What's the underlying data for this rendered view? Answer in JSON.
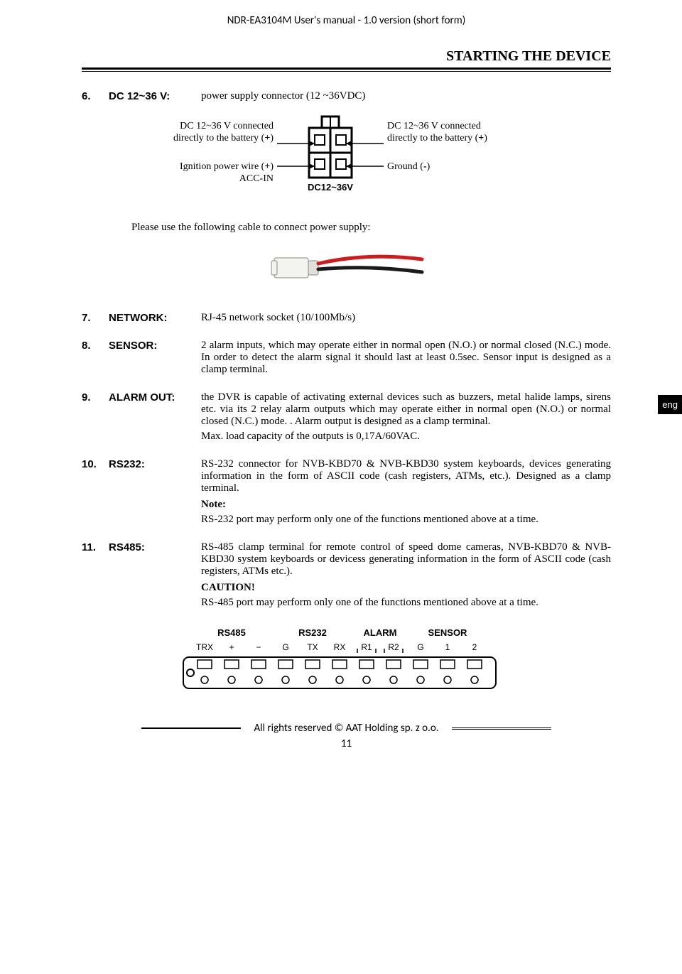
{
  "header": {
    "doc_title": "NDR-EA3104M User's manual - 1.0 version (short form)"
  },
  "section": {
    "title": "STARTING THE DEVICE"
  },
  "lang_tab": "eng",
  "connector": {
    "number": "6.",
    "label": "DC 12~36 V:",
    "desc": "power supply connector (12 ~36VDC)",
    "left_top_line1": "DC 12~36 V connected",
    "left_top_line2_pre": "directly to the battery (",
    "left_top_line2_sign": "+",
    "left_top_line2_post": ")",
    "left_bot_line1_pre": "Ignition power wire (",
    "left_bot_line1_sign": "+",
    "left_bot_line1_post": ")",
    "left_bot_line2": "ACC-IN",
    "right_top_line1": "DC 12~36 V connected",
    "right_top_line2_pre": "directly to the battery (",
    "right_top_line2_sign": "+",
    "right_top_line2_post": ")",
    "right_bot_pre": "Ground (",
    "right_bot_sign": "-",
    "right_bot_post": ")",
    "svg_label": "DC12~36V",
    "cable_msg": "Please use the following cable to connect power supply:"
  },
  "items": [
    {
      "number": "7.",
      "label": "NETWORK:",
      "body": "RJ-45 network socket (10/100Mb/s)"
    },
    {
      "number": "8.",
      "label": "SENSOR:",
      "body": "2 alarm inputs, which may operate either in normal open (N.O.) or normal closed (N.C.) mode. In order to detect the alarm signal it should last at least 0.5sec. Sensor input is designed as a clamp terminal."
    },
    {
      "number": "9.",
      "label": "ALARM OUT:",
      "body": "the DVR is capable of activating external devices such as buzzers, metal halide lamps, sirens etc. via its 2 relay alarm outputs which may operate either in normal open (N.O.) or normal closed (N.C.) mode. . Alarm output is designed as a clamp terminal.",
      "body2": "Max. load capacity of the outputs is 0,17A/60VAC."
    },
    {
      "number": "10.",
      "label": "RS232:",
      "body": "RS-232 connector for NVB-KBD70 & NVB-KBD30 system keyboards, devices generating information in the form of ASCII code (cash registers, ATMs, etc.). Designed as a clamp terminal.",
      "note": "Note:",
      "body3": "RS-232 port may perform only one of the functions mentioned above at a time."
    },
    {
      "number": "11.",
      "label": "RS485:",
      "body": "RS-485 clamp terminal for remote control of speed dome cameras, NVB-KBD70 & NVB-KBD30 system keyboards or devicess generating information in the form of ASCII code (cash registers, ATMs etc.).",
      "note": "CAUTION!",
      "body3": "RS-485 port may perform only one of the functions mentioned above at a time."
    }
  ],
  "terminal": {
    "headers": [
      "RS485",
      "RS232",
      "ALARM",
      "SENSOR"
    ],
    "pins": [
      "TRX",
      "+",
      "−",
      "G",
      "TX",
      "RX",
      "R1",
      "R2",
      "G",
      "1",
      "2"
    ],
    "rbrackets": [
      6,
      7
    ]
  },
  "footer": {
    "copyright": "All rights reserved © AAT Holding sp. z o.o.",
    "page": "11"
  },
  "colors": {
    "text": "#000000",
    "bg": "#ffffff",
    "cable_body": "#e8e8e4",
    "cable_red": "#d11a1a",
    "cable_black": "#1a1a1a"
  }
}
